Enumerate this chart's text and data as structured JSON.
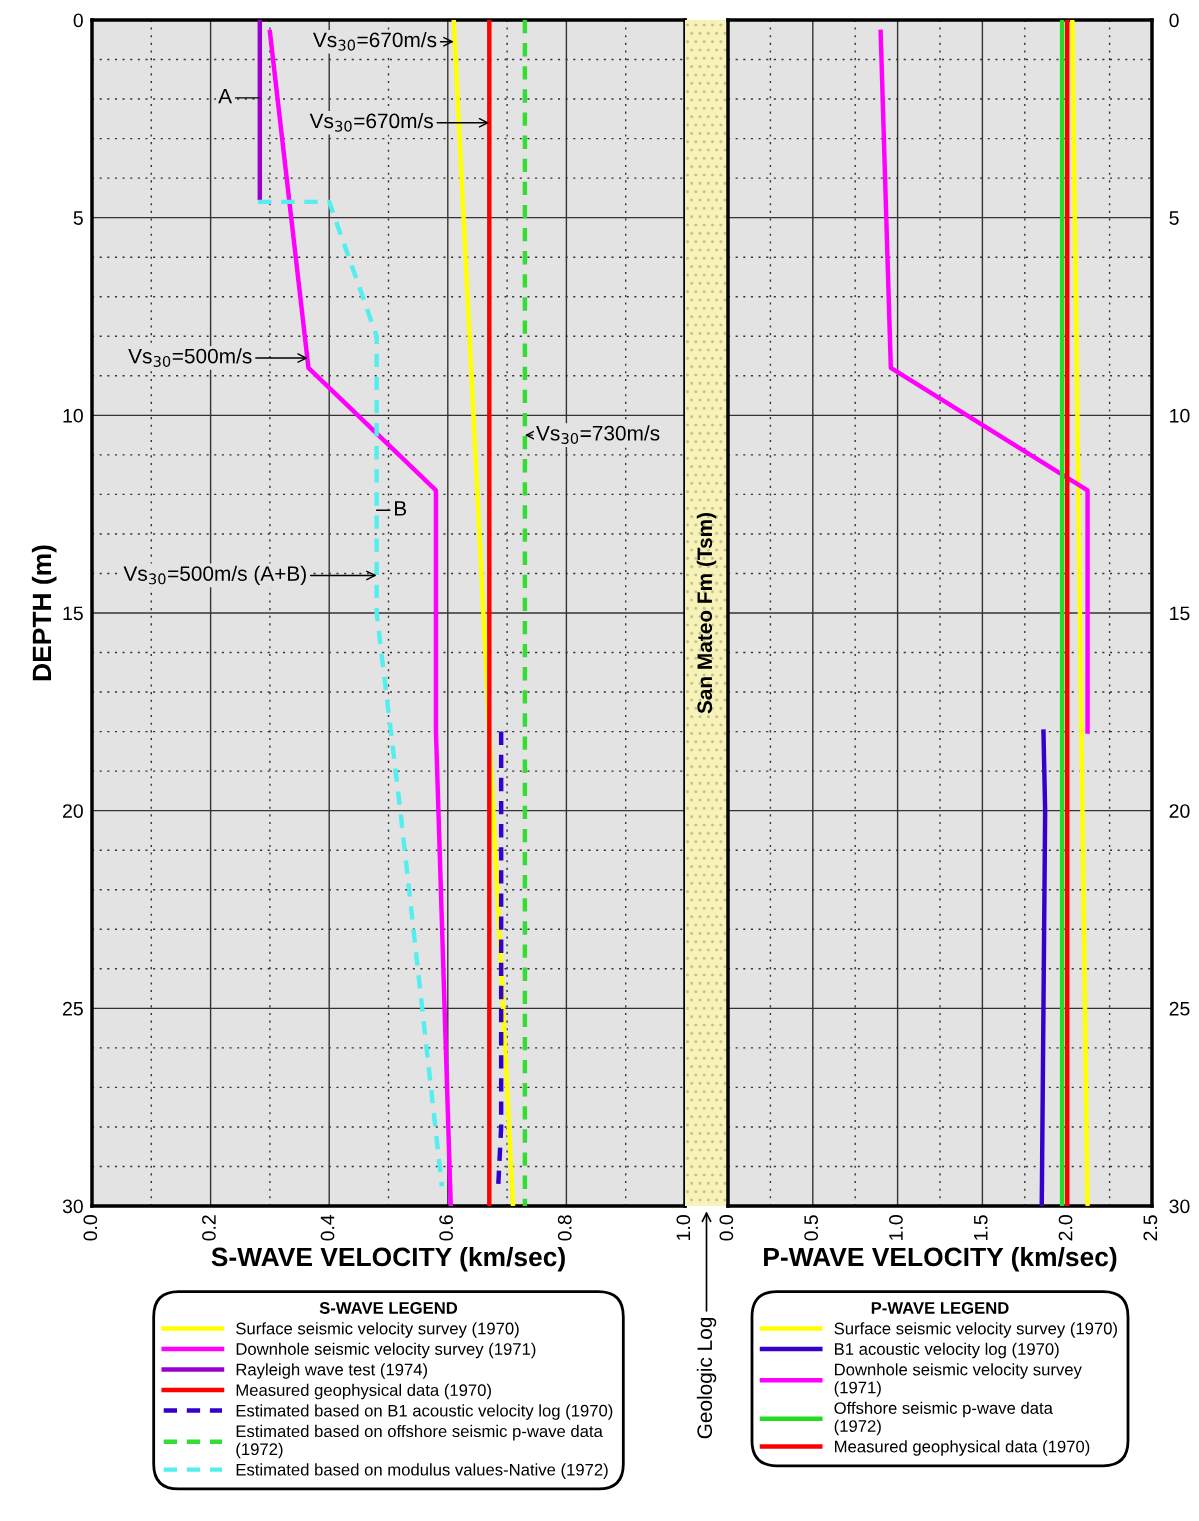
{
  "chart_data": [
    {
      "type": "line",
      "xlabel": "S-WAVE VELOCITY (km/sec)",
      "ylabel": "DEPTH (m)",
      "xlim": [
        0,
        1.0
      ],
      "xticks": [
        {
          "value": 0,
          "label": "0.0"
        },
        {
          "value": 0.2,
          "label": "0.2"
        },
        {
          "value": 0.4,
          "label": "0.4"
        },
        {
          "value": 0.6,
          "label": "0.6"
        },
        {
          "value": 0.8,
          "label": "0.8"
        },
        {
          "value": 1.0,
          "label": "1.0"
        }
      ],
      "ylim": [
        30,
        0
      ],
      "yticks": [
        0,
        5,
        10,
        15,
        20,
        25,
        30
      ],
      "grid": true,
      "legend": "bottom",
      "legend_title": "S-WAVE LEGEND",
      "series": [
        {
          "name": "Surface seismic velocity survey (1970)",
          "color": "#ffff00",
          "x": [
            0.61,
            0.71
          ],
          "values": [
            0,
            30
          ]
        },
        {
          "name": "Downhole seismic velocity survey (1971)",
          "color": "#ff00ff",
          "x": [
            0.3,
            0.365,
            0.58,
            0.58,
            0.605
          ],
          "values": [
            0.3,
            8.8,
            11.9,
            18,
            30
          ]
        },
        {
          "name": "Rayleigh wave test (1974)",
          "color": "#9900cc",
          "x": [
            0.283,
            0.283
          ],
          "values": [
            0,
            4.5
          ]
        },
        {
          "name": "Measured geophysical data (1970)",
          "color": "#ff0000",
          "x": [
            0.67,
            0.67
          ],
          "values": [
            0,
            30
          ]
        },
        {
          "name": "Estimated based on B1 acoustic velocity log (1970)",
          "color": "#3300cc",
          "line_style": "dashed",
          "x": [
            0.69,
            0.69,
            0.685
          ],
          "values": [
            18,
            28,
            29.5
          ]
        },
        {
          "name": "Estimated based on offshore seismic p-wave data\n(1972)",
          "color": "#33dd33",
          "line_style": "dashed",
          "x": [
            0.73,
            0.73
          ],
          "values": [
            0,
            30
          ]
        },
        {
          "name": "Estimated based on modulus values-Native (1972)",
          "color": "#55eeee",
          "line_style": "dashed",
          "x": [
            0.28,
            0.4,
            0.48,
            0.48,
            0.52,
            0.59
          ],
          "values": [
            4.6,
            4.6,
            8,
            15,
            20,
            29.5
          ]
        }
      ],
      "annotations": [
        {
          "text": "Vs$_{30}$=670m/s",
          "x": 0.61,
          "y": 0.55
        },
        {
          "text": "Vs$_{30}$=670m/s",
          "x": 0.67,
          "y": 2.6
        },
        {
          "text": "Vs$_{30}$=500m/s",
          "x": 0.364,
          "y": 8.55
        },
        {
          "text": "Vs$_{30}$=730m/s",
          "x": 0.73,
          "y": 10.5
        },
        {
          "text": "Vs$_{30}$=500m/s (A+B)",
          "x": 0.48,
          "y": 14.05
        },
        {
          "text": "A",
          "x": 0.283,
          "y": 1.97
        },
        {
          "text": "B",
          "x": 0.48,
          "y": 12.4
        }
      ]
    },
    {
      "type": "other",
      "title": "San Mateo Fm (Tsm)",
      "xlabel": "Geologic Log"
    },
    {
      "type": "line",
      "xlabel": "P-WAVE VELOCITY (km/sec)",
      "xlim": [
        0,
        2.5
      ],
      "xticks": [
        {
          "value": 0,
          "label": "0.0"
        },
        {
          "value": 0.5,
          "label": "0.5"
        },
        {
          "value": 1.0,
          "label": "1.0"
        },
        {
          "value": 1.5,
          "label": "1.5"
        },
        {
          "value": 2.0,
          "label": "2.0"
        },
        {
          "value": 2.5,
          "label": "2.5"
        }
      ],
      "ylim": [
        30,
        0
      ],
      "yticks": [
        0,
        5,
        10,
        15,
        20,
        25,
        30
      ],
      "grid": true,
      "legend": "bottom",
      "legend_title": "P-WAVE LEGEND",
      "series": [
        {
          "name": "Surface seismic velocity survey (1970)",
          "color": "#ffff00",
          "x": [
            2.03,
            2.12
          ],
          "values": [
            0,
            30
          ]
        },
        {
          "name": "B1 acoustic velocity log (1970)",
          "color": "#3300cc",
          "x": [
            1.86,
            1.87,
            1.85
          ],
          "values": [
            18,
            20,
            30
          ]
        },
        {
          "name": "Downhole seismic velocity survey\n(1971)",
          "color": "#ff00ff",
          "x": [
            0.9,
            0.96,
            2.12,
            2.12
          ],
          "values": [
            0.3,
            8.8,
            11.9,
            18
          ]
        },
        {
          "name": "Offshore seismic p-wave data\n(1972)",
          "color": "#22dd22",
          "x": [
            1.97,
            1.97
          ],
          "values": [
            0,
            30
          ]
        },
        {
          "name": "Measured geophysical data (1970)",
          "color": "#ff0000",
          "x": [
            2.0,
            2.0
          ],
          "values": [
            0,
            30
          ]
        }
      ]
    }
  ]
}
